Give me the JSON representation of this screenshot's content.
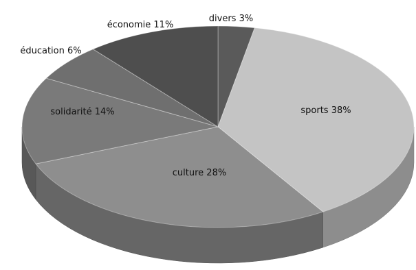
{
  "chart_data": {
    "type": "pie",
    "title": "",
    "slices": [
      {
        "label": "divers 3%",
        "value": 3,
        "color": "#5a5a5a"
      },
      {
        "label": "sports 38%",
        "value": 38,
        "color": "#c4c4c4"
      },
      {
        "label": "culture 28%",
        "value": 28,
        "color": "#8e8e8e"
      },
      {
        "label": "solidarité 14%",
        "value": 14,
        "color": "#7a7a7a"
      },
      {
        "label": "éducation 6%",
        "value": 6,
        "color": "#6f6f6f"
      },
      {
        "label": "économie 11%",
        "value": 11,
        "color": "#4e4e4e"
      }
    ]
  }
}
